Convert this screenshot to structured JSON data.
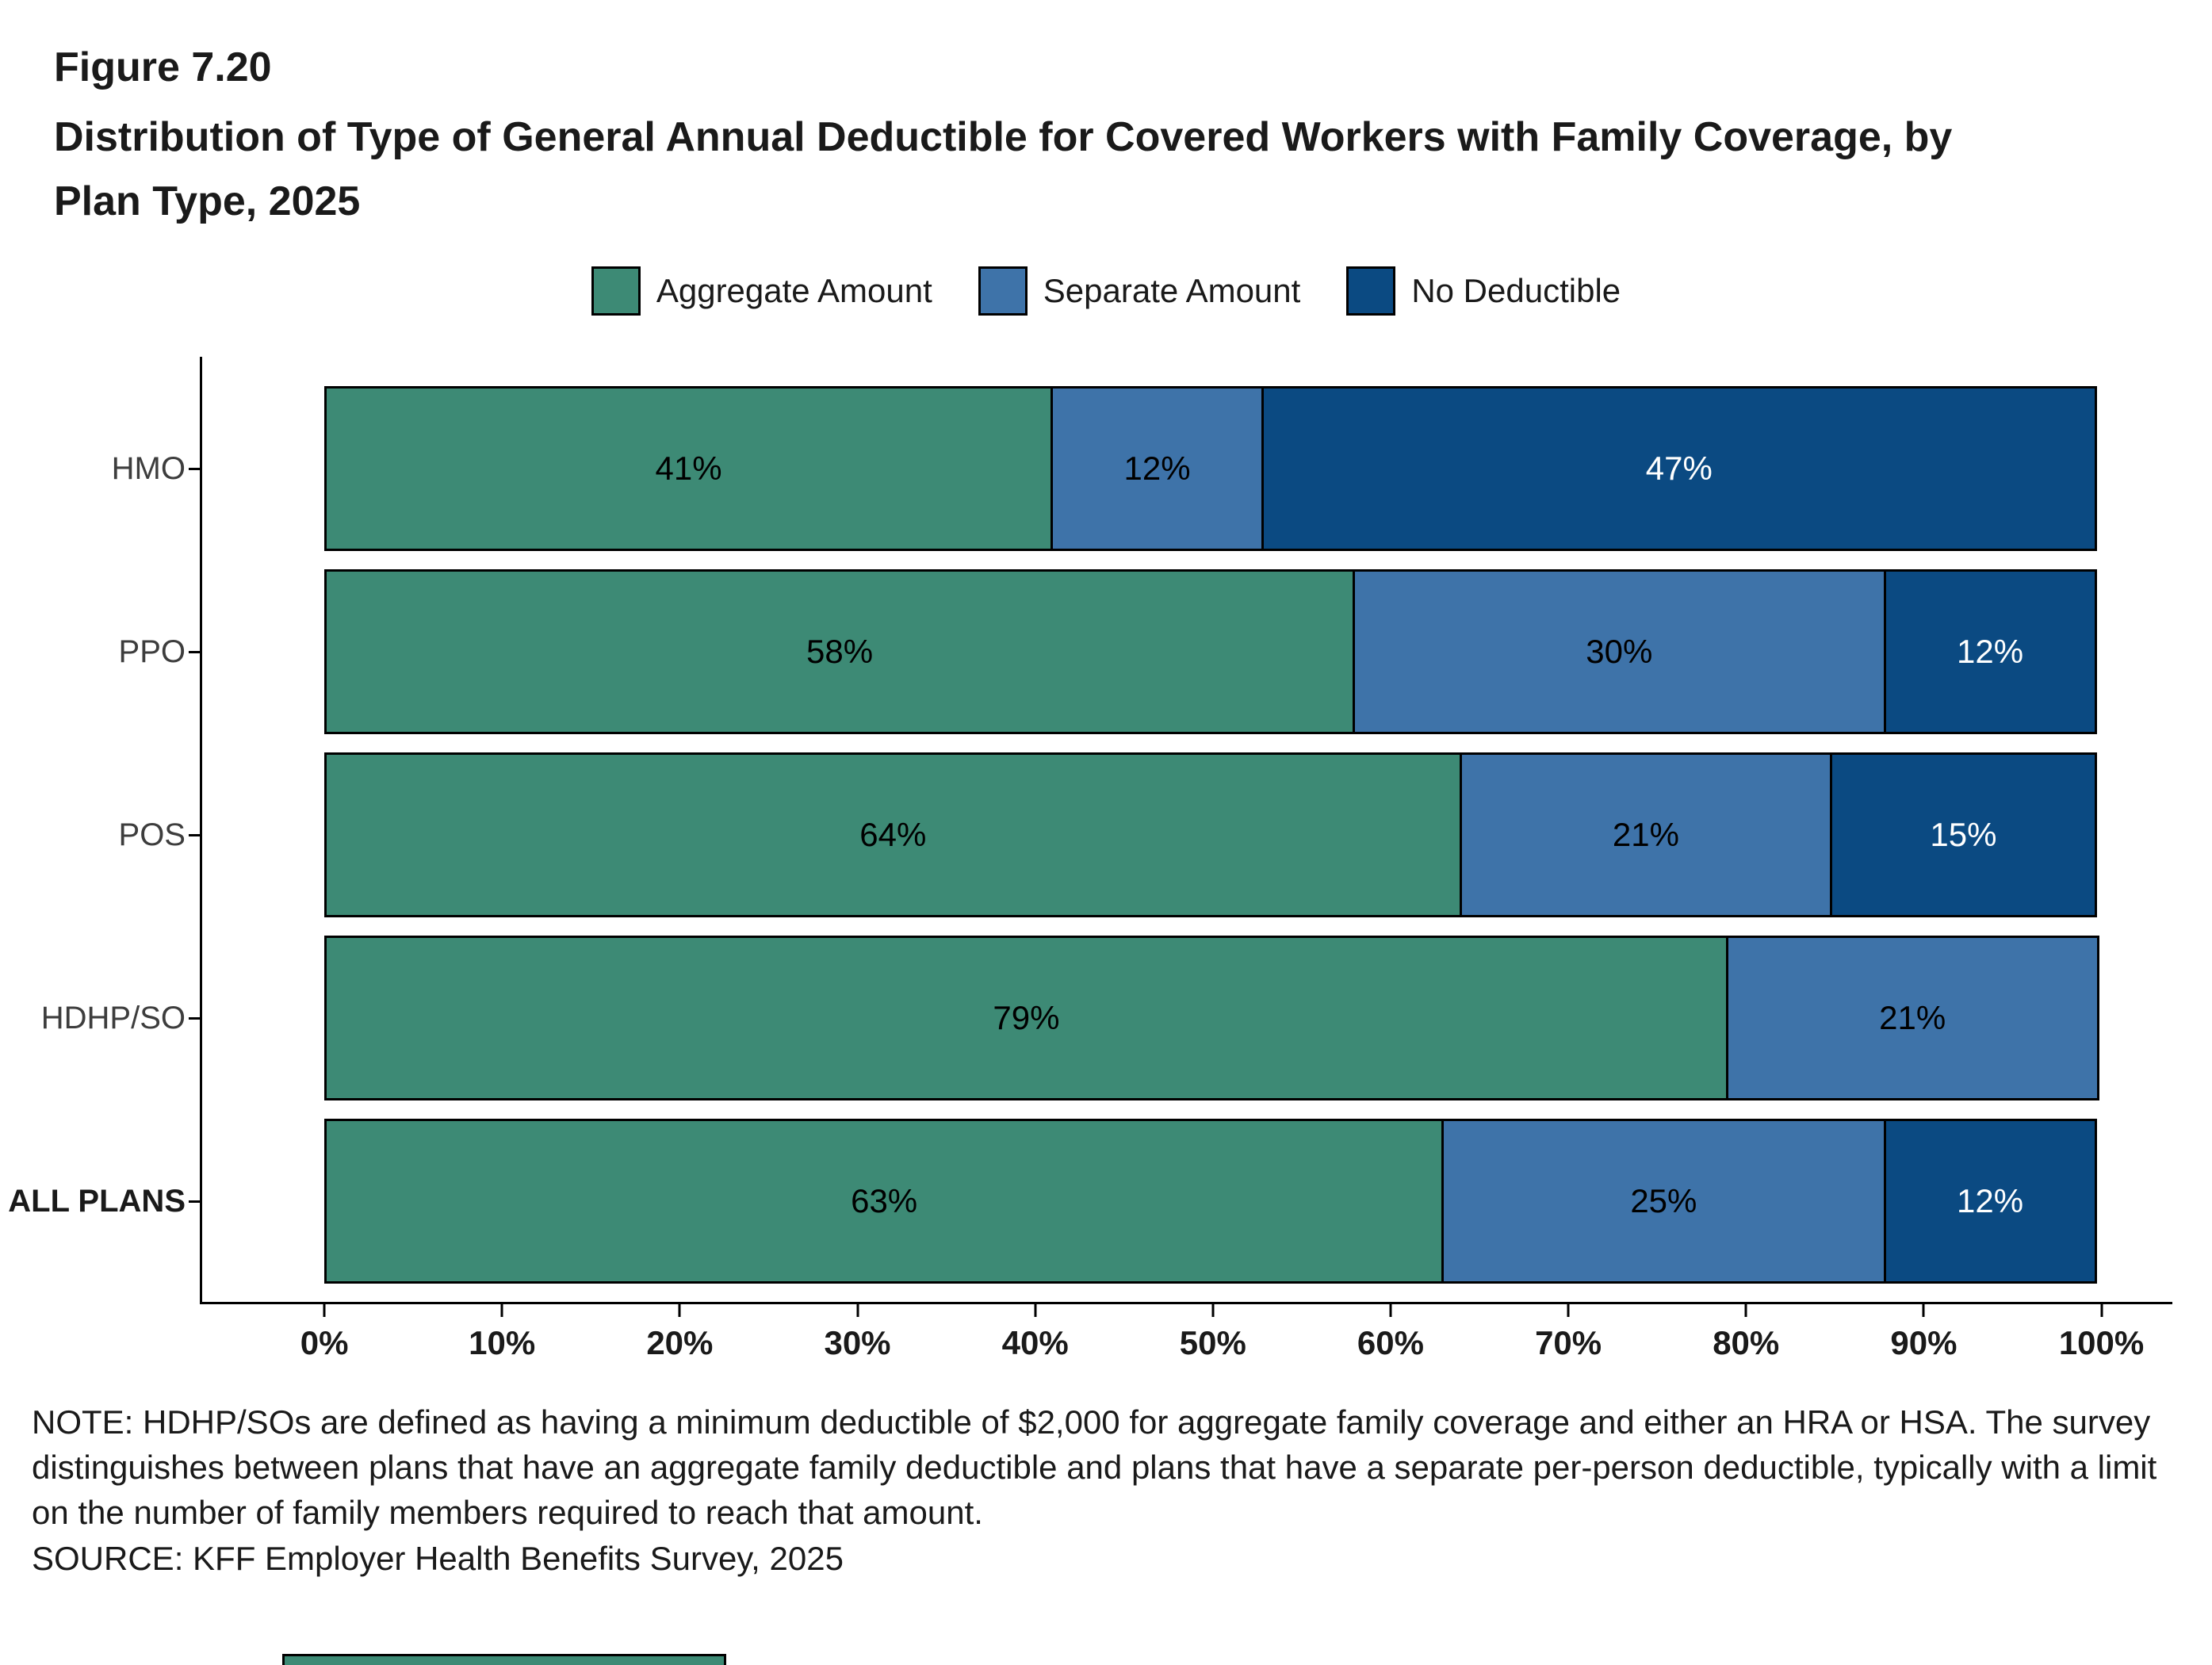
{
  "figure": {
    "number": "Figure 7.20",
    "title": "Distribution of Type of General Annual Deductible for Covered Workers with Family Coverage, by Plan Type, 2025"
  },
  "chart_data": {
    "type": "bar",
    "orientation": "horizontal",
    "stacked": true,
    "title": "Distribution of Type of General Annual Deductible for Covered Workers with Family Coverage, by Plan Type, 2025",
    "categories": [
      "HMO",
      "PPO",
      "POS",
      "HDHP/SO",
      "ALL PLANS"
    ],
    "emphasized_category": "ALL PLANS",
    "series": [
      {
        "name": "Aggregate Amount",
        "color": "#3d8a75",
        "label_color": "#000000",
        "values": [
          41,
          58,
          64,
          79,
          63
        ]
      },
      {
        "name": "Separate Amount",
        "color": "#3e73a9",
        "label_color": "#000000",
        "values": [
          12,
          30,
          21,
          21,
          25
        ]
      },
      {
        "name": "No Deductible",
        "color": "#0b4a82",
        "label_color": "#ffffff",
        "values": [
          47,
          12,
          15,
          0,
          12
        ]
      }
    ],
    "value_suffix": "%",
    "xlabel": "",
    "ylabel": "",
    "xlim": [
      0,
      100
    ],
    "x_ticks": [
      "0%",
      "10%",
      "20%",
      "30%",
      "40%",
      "50%",
      "60%",
      "70%",
      "80%",
      "90%",
      "100%"
    ],
    "grid": false,
    "legend_position": "top"
  },
  "notes": {
    "note": "NOTE: HDHP/SOs are defined as having a minimum deductible of $2,000 for aggregate family coverage and either an HRA or HSA. The survey distinguishes between plans that have an aggregate family deductible and plans that have a separate per-person deductible, typically with a limit on the number of family members required to reach that amount.",
    "source": "SOURCE: KFF Employer Health Benefits Survey, 2025"
  }
}
